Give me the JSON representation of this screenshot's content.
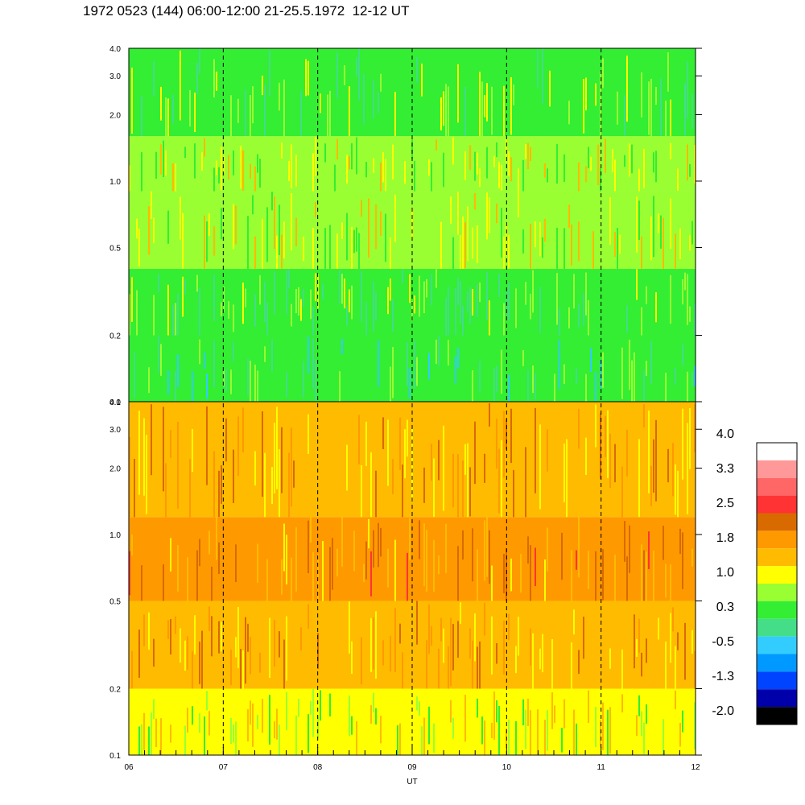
{
  "title": "1972 0523 (144) 06:00-12:00 21-25.5.1972  12-12 UT",
  "chart_data": {
    "type": "heatmap",
    "xlabel": "UT",
    "x_ticks": [
      "06",
      "07",
      "08",
      "09",
      "10",
      "11",
      "12"
    ],
    "x_range_hours": [
      6,
      12
    ],
    "dashed_hour_lines": [
      7,
      8,
      9,
      10,
      11
    ],
    "y_scale": "log",
    "y_range": [
      0.1,
      4.0
    ],
    "y_ticks": [
      "0.1",
      "0.2",
      "0.5",
      "1.0",
      "2.0",
      "3.0",
      "4.0"
    ],
    "y_tick_values": [
      0.1,
      0.2,
      0.5,
      1.0,
      2.0,
      3.0,
      4.0
    ],
    "panels": [
      {
        "position": "top",
        "bands": [
          {
            "y_from": 0.1,
            "y_to": 0.2,
            "level": 0.3
          },
          {
            "y_from": 0.2,
            "y_to": 0.4,
            "level": 0.5
          },
          {
            "y_from": 0.4,
            "y_to": 0.9,
            "level": 1.0
          },
          {
            "y_from": 0.9,
            "y_to": 1.6,
            "level": 0.9
          },
          {
            "y_from": 1.6,
            "y_to": 4.0,
            "level": 0.6
          }
        ]
      },
      {
        "position": "bottom",
        "bands": [
          {
            "y_from": 0.1,
            "y_to": 0.2,
            "level": 1.1
          },
          {
            "y_from": 0.2,
            "y_to": 0.5,
            "level": 1.8
          },
          {
            "y_from": 0.5,
            "y_to": 1.2,
            "level": 2.0
          },
          {
            "y_from": 1.2,
            "y_to": 4.0,
            "level": 1.7
          }
        ]
      }
    ],
    "colorbar": {
      "labels": [
        "4.0",
        "3.3",
        "2.5",
        "1.8",
        "1.0",
        "0.3",
        "-0.5",
        "-1.3",
        "-2.0"
      ],
      "colors": [
        "#ffffff",
        "#ff9999",
        "#ff6666",
        "#ff3333",
        "#d96a00",
        "#ff9900",
        "#ffbb00",
        "#ffff00",
        "#99ff33",
        "#33ee33",
        "#44dd88",
        "#33ccff",
        "#0099ff",
        "#0044ff",
        "#0000aa",
        "#000000"
      ]
    }
  }
}
